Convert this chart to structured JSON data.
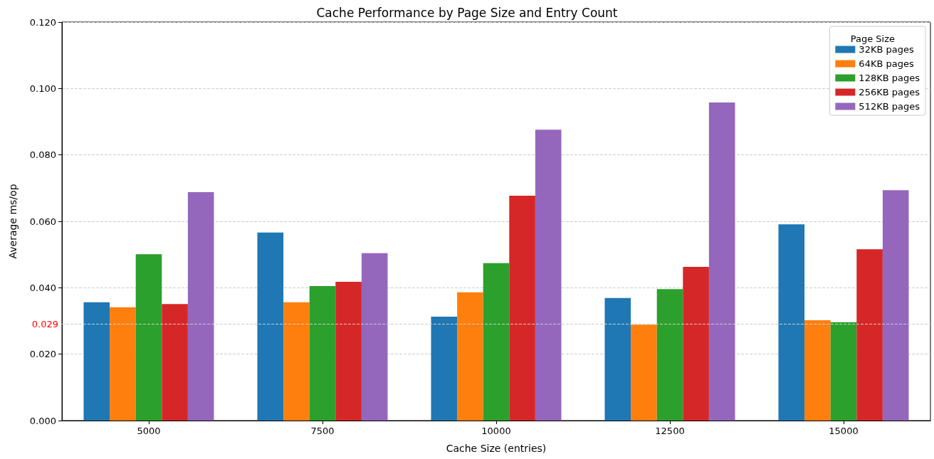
{
  "chart_data": {
    "type": "bar",
    "title": "Cache Performance by Page Size and Entry Count",
    "xlabel": "Cache Size (entries)",
    "ylabel": "Average ms/op",
    "legend_title": "Page Size",
    "categories": [
      "5000",
      "7500",
      "10000",
      "12500",
      "15000"
    ],
    "series": [
      {
        "name": "32KB pages",
        "color": "#1f77b4",
        "values": [
          0.0356,
          0.0566,
          0.0313,
          0.0369,
          0.0591
        ]
      },
      {
        "name": "64KB pages",
        "color": "#ff7f0e",
        "values": [
          0.0341,
          0.0356,
          0.0386,
          0.0289,
          0.0302
        ]
      },
      {
        "name": "128KB pages",
        "color": "#2ca02c",
        "values": [
          0.0501,
          0.0405,
          0.0474,
          0.0396,
          0.0296
        ]
      },
      {
        "name": "256KB pages",
        "color": "#d62728",
        "values": [
          0.0351,
          0.0418,
          0.0677,
          0.0463,
          0.0516
        ]
      },
      {
        "name": "512KB pages",
        "color": "#9467bd",
        "values": [
          0.0688,
          0.0504,
          0.0876,
          0.0958,
          0.0694
        ]
      }
    ],
    "ylim": [
      0,
      0.12
    ],
    "yticks": [
      {
        "value": 0,
        "label": "0.000"
      },
      {
        "value": 0.02,
        "label": "0.020"
      },
      {
        "value": 0.04,
        "label": "0.040"
      },
      {
        "value": 0.06,
        "label": "0.060"
      },
      {
        "value": 0.08,
        "label": "0.080"
      },
      {
        "value": 0.1,
        "label": "0.100"
      },
      {
        "value": 0.12,
        "label": "0.120"
      }
    ],
    "ref_lines": [
      {
        "axis": "y",
        "value": 0.029,
        "label": "0.029",
        "color": "#cccccc"
      }
    ],
    "grid": "y",
    "legend": "top right"
  }
}
